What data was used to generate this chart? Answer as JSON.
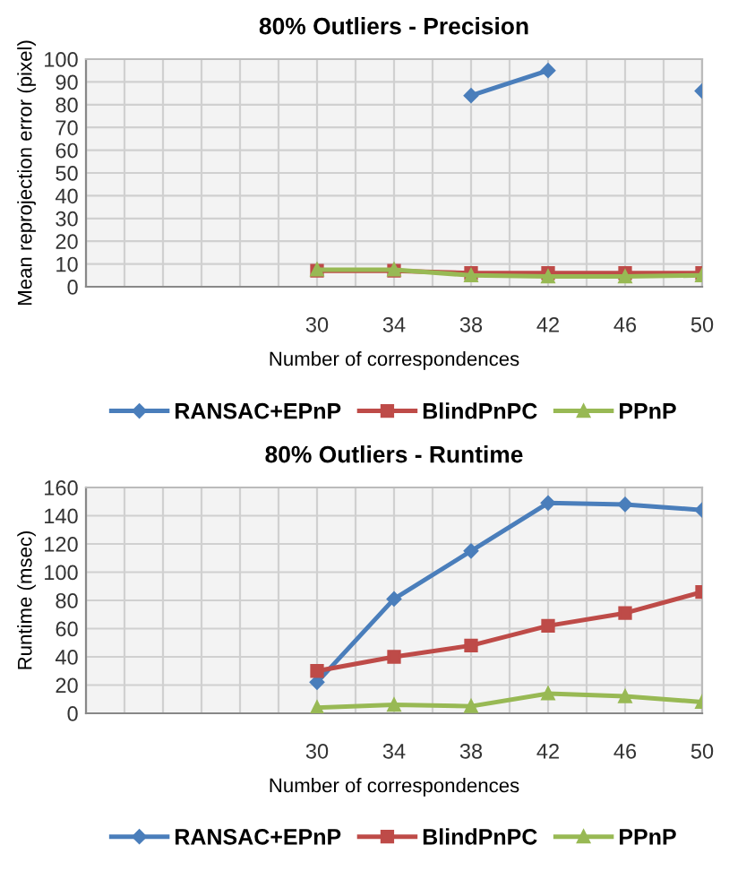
{
  "chart_data": [
    {
      "type": "line",
      "title": "80% Outliers - Precision",
      "xlabel": "Number of correspondences",
      "ylabel": "Mean reprojection error (pixel)",
      "x": [
        30,
        34,
        38,
        42,
        46,
        50
      ],
      "series": [
        {
          "name": "RANSAC+EPnP",
          "color": "#4a7ebb",
          "marker": "diamond",
          "values": [
            null,
            null,
            84,
            95,
            null,
            86
          ]
        },
        {
          "name": "BlindPnPC",
          "color": "#be4b48",
          "marker": "square",
          "values": [
            7,
            7,
            6,
            6,
            6,
            6
          ]
        },
        {
          "name": "PPnP",
          "color": "#98b954",
          "marker": "triangle",
          "values": [
            7.5,
            7.5,
            5,
            4.5,
            4.5,
            5
          ]
        }
      ],
      "xlim": [
        18,
        50
      ],
      "xticks": [
        {
          "value": 18,
          "label": null
        },
        {
          "value": 20,
          "label": null
        },
        {
          "value": 22,
          "label": null
        },
        {
          "value": 24,
          "label": null
        },
        {
          "value": 26,
          "label": null
        },
        {
          "value": 28,
          "label": null
        },
        30,
        {
          "value": 32,
          "label": null
        },
        34,
        {
          "value": 36,
          "label": null
        },
        38,
        {
          "value": 40,
          "label": null
        },
        42,
        {
          "value": 44,
          "label": null
        },
        46,
        {
          "value": 48,
          "label": null
        },
        50
      ],
      "ylim": [
        0,
        100
      ],
      "yticks": [
        0,
        10,
        20,
        30,
        40,
        50,
        60,
        70,
        80,
        90,
        100
      ],
      "grid": true,
      "legend": "bottom"
    },
    {
      "type": "line",
      "title": "80% Outliers - Runtime",
      "xlabel": "Number of correspondences",
      "ylabel": "Runtime (msec)",
      "x": [
        30,
        34,
        38,
        42,
        46,
        50
      ],
      "series": [
        {
          "name": "RANSAC+EPnP",
          "color": "#4a7ebb",
          "marker": "diamond",
          "values": [
            22,
            81,
            115,
            149,
            148,
            144
          ]
        },
        {
          "name": "BlindPnPC",
          "color": "#be4b48",
          "marker": "square",
          "values": [
            30,
            40,
            48,
            62,
            71,
            86
          ]
        },
        {
          "name": "PPnP",
          "color": "#98b954",
          "marker": "triangle",
          "values": [
            4,
            6,
            5,
            14,
            12,
            8
          ]
        }
      ],
      "xlim": [
        18,
        50
      ],
      "xticks": [
        {
          "value": 18,
          "label": null
        },
        {
          "value": 20,
          "label": null
        },
        {
          "value": 22,
          "label": null
        },
        {
          "value": 24,
          "label": null
        },
        {
          "value": 26,
          "label": null
        },
        {
          "value": 28,
          "label": null
        },
        30,
        {
          "value": 32,
          "label": null
        },
        34,
        {
          "value": 36,
          "label": null
        },
        38,
        {
          "value": 40,
          "label": null
        },
        42,
        {
          "value": 44,
          "label": null
        },
        46,
        {
          "value": 48,
          "label": null
        },
        50
      ],
      "ylim": [
        0,
        160
      ],
      "yticks": [
        0,
        20,
        40,
        60,
        80,
        100,
        120,
        140,
        160
      ],
      "grid": true,
      "legend": "bottom"
    }
  ]
}
